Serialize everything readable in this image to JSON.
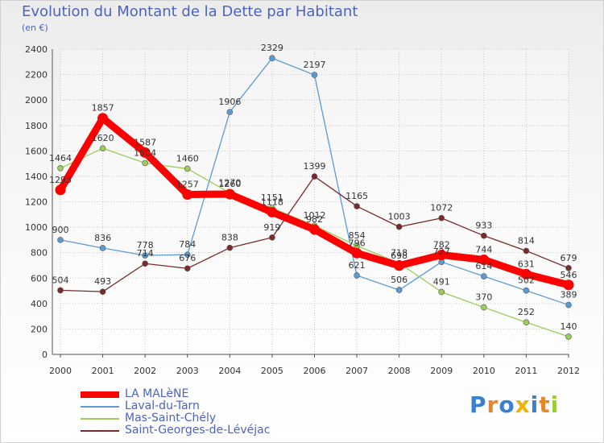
{
  "title": "Evolution du Montant de la Dette par Habitant",
  "subtitle": "(en €)",
  "logo_text": "Proxiti",
  "colors": {
    "title": "#4a63c8",
    "grid": "#c8c8c8",
    "axis": "#555555"
  },
  "chart_data": {
    "type": "line",
    "x": [
      "2000",
      "2001",
      "2002",
      "2003",
      "2004",
      "2005",
      "2006",
      "2007",
      "2008",
      "2009",
      "2010",
      "2011",
      "2012"
    ],
    "ylim": [
      0,
      2400
    ],
    "yticks": [
      0,
      200,
      400,
      600,
      800,
      1000,
      1200,
      1400,
      1600,
      1800,
      2000,
      2200,
      2400
    ],
    "grid": true,
    "legend_position": "bottom-left",
    "series": [
      {
        "name": "LA MALèNE",
        "color": "#ff0000",
        "values": [
          1293,
          1857,
          1587,
          1257,
          1260,
          1118,
          982,
          796,
          698,
          782,
          744,
          631,
          546
        ]
      },
      {
        "name": "Laval-du-Tarn",
        "color": "#5b9bd5",
        "values": [
          900,
          836,
          778,
          784,
          1906,
          2329,
          2197,
          621,
          506,
          727,
          614,
          502,
          389
        ]
      },
      {
        "name": "Mas-Saint-Chély",
        "color": "#9acd5a",
        "values": [
          1464,
          1620,
          1504,
          1460,
          1270,
          1151,
          1012,
          854,
          718,
          491,
          370,
          252,
          140
        ]
      },
      {
        "name": "Saint-Georges-de-Lévéjac",
        "color": "#7b2a2a",
        "values": [
          504,
          493,
          714,
          676,
          838,
          919,
          1399,
          1165,
          1003,
          1072,
          933,
          814,
          679
        ]
      }
    ]
  }
}
